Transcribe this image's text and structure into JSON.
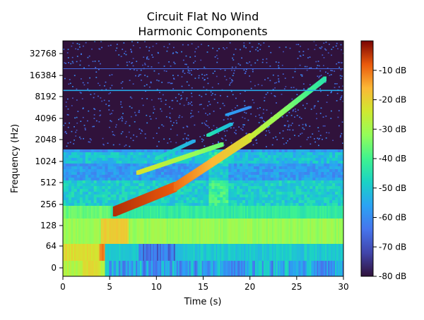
{
  "chart_data": {
    "type": "heatmap",
    "title": "Circuit Flat No Wind",
    "subtitle": "Harmonic Components",
    "xlabel": "Time (s)",
    "ylabel": "Frequency (Hz)",
    "x_ticks": [
      0,
      5,
      10,
      15,
      20,
      25,
      30
    ],
    "y_ticks": [
      "0",
      "64",
      "128",
      "256",
      "512",
      "1024",
      "2048",
      "4096",
      "8192",
      "16384",
      "32768"
    ],
    "xlim": [
      0,
      30
    ],
    "y_scale": "log2",
    "colorbar": {
      "colormap": "turbo",
      "range_db": [
        -80,
        0
      ],
      "tick_labels": [
        "-10 dB",
        "-20 dB",
        "-30 dB",
        "-40 dB",
        "-50 dB",
        "-60 dB",
        "-70 dB",
        "-80 dB"
      ],
      "tick_values": [
        -10,
        -20,
        -30,
        -40,
        -50,
        -60,
        -70,
        -80
      ]
    },
    "features": {
      "fundamental_sweep": {
        "start": [
          4.5,
          100
        ],
        "end": [
          28,
          12000
        ],
        "peak_db": -5
      },
      "harmonics": 3,
      "constant_lines_hz": [
        10500,
        20000
      ],
      "noise_floor_db": -75
    }
  }
}
